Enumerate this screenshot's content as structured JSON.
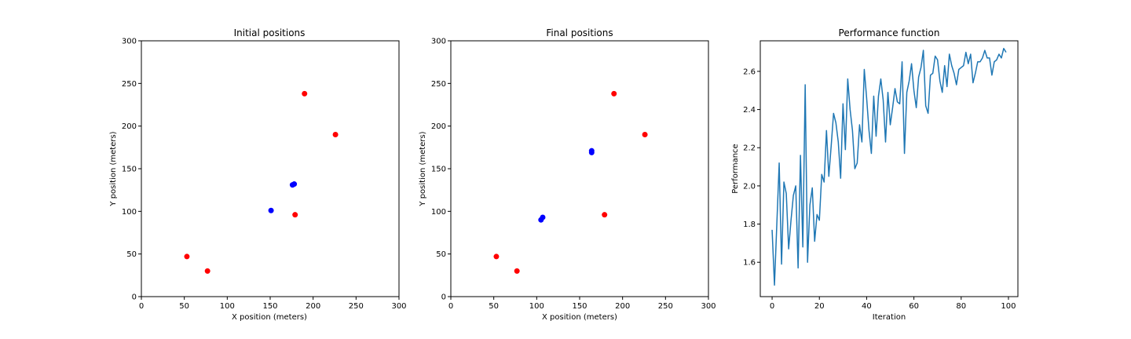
{
  "chart_data": [
    {
      "type": "scatter",
      "title": "Initial positions",
      "xlabel": "X position (meters)",
      "ylabel": "Y position (meters)",
      "xlim": [
        0,
        300
      ],
      "ylim": [
        0,
        300
      ],
      "xticks": [
        0,
        50,
        100,
        150,
        200,
        250,
        300
      ],
      "yticks": [
        0,
        50,
        100,
        150,
        200,
        250,
        300
      ],
      "grid": false,
      "series": [
        {
          "color": "#ff0000",
          "points": [
            [
              53,
              47
            ],
            [
              77,
              30
            ],
            [
              179,
              96
            ],
            [
              190,
              238
            ],
            [
              226,
              190
            ]
          ]
        },
        {
          "color": "#0000ff",
          "points": [
            [
              151,
              101
            ],
            [
              176,
              131
            ],
            [
              178,
              132
            ]
          ]
        }
      ]
    },
    {
      "type": "scatter",
      "title": "Final positions",
      "xlabel": "X position (meters)",
      "ylabel": "Y position (meters)",
      "xlim": [
        0,
        300
      ],
      "ylim": [
        0,
        300
      ],
      "xticks": [
        0,
        50,
        100,
        150,
        200,
        250,
        300
      ],
      "yticks": [
        0,
        50,
        100,
        150,
        200,
        250,
        300
      ],
      "grid": false,
      "series": [
        {
          "color": "#ff0000",
          "points": [
            [
              53,
              47
            ],
            [
              77,
              30
            ],
            [
              179,
              96
            ],
            [
              190,
              238
            ],
            [
              226,
              190
            ]
          ]
        },
        {
          "color": "#0000ff",
          "points": [
            [
              105,
              90
            ],
            [
              107,
              93
            ],
            [
              164,
              169
            ],
            [
              164,
              171
            ]
          ]
        }
      ]
    },
    {
      "type": "line",
      "title": "Performance function",
      "xlabel": "Iteration",
      "ylabel": "Performance",
      "xlim": [
        -5,
        104
      ],
      "ylim": [
        1.42,
        2.76
      ],
      "xticks": [
        0,
        20,
        40,
        60,
        80,
        100
      ],
      "yticks": [
        1.6,
        1.8,
        2.0,
        2.2,
        2.4,
        2.6
      ],
      "ytick_labels": [
        "1.6",
        "1.8",
        "2.0",
        "2.2",
        "2.4",
        "2.6"
      ],
      "grid": false,
      "series": [
        {
          "color": "#1f77b4",
          "x": [
            0,
            1,
            2,
            3,
            4,
            5,
            6,
            7,
            8,
            9,
            10,
            11,
            12,
            13,
            14,
            15,
            16,
            17,
            18,
            19,
            20,
            21,
            22,
            23,
            24,
            25,
            26,
            27,
            28,
            29,
            30,
            31,
            32,
            33,
            34,
            35,
            36,
            37,
            38,
            39,
            40,
            41,
            42,
            43,
            44,
            45,
            46,
            47,
            48,
            49,
            50,
            51,
            52,
            53,
            54,
            55,
            56,
            57,
            58,
            59,
            60,
            61,
            62,
            63,
            64,
            65,
            66,
            67,
            68,
            69,
            70,
            71,
            72,
            73,
            74,
            75,
            76,
            77,
            78,
            79,
            80,
            81,
            82,
            83,
            84,
            85,
            86,
            87,
            88,
            89,
            90,
            91,
            92,
            93,
            94,
            95,
            96,
            97,
            98,
            99
          ],
          "y": [
            1.77,
            1.48,
            1.8,
            2.12,
            1.59,
            2.02,
            1.96,
            1.67,
            1.82,
            1.95,
            2.0,
            1.57,
            2.16,
            1.68,
            2.53,
            1.6,
            1.9,
            1.99,
            1.71,
            1.85,
            1.82,
            2.06,
            2.02,
            2.29,
            2.05,
            2.21,
            2.38,
            2.33,
            2.23,
            2.04,
            2.43,
            2.19,
            2.56,
            2.4,
            2.29,
            2.09,
            2.12,
            2.32,
            2.23,
            2.61,
            2.46,
            2.29,
            2.17,
            2.47,
            2.26,
            2.47,
            2.56,
            2.45,
            2.23,
            2.49,
            2.32,
            2.41,
            2.51,
            2.44,
            2.43,
            2.65,
            2.17,
            2.49,
            2.55,
            2.64,
            2.5,
            2.41,
            2.57,
            2.62,
            2.71,
            2.42,
            2.38,
            2.58,
            2.59,
            2.68,
            2.66,
            2.55,
            2.49,
            2.63,
            2.52,
            2.69,
            2.63,
            2.59,
            2.53,
            2.61,
            2.62,
            2.63,
            2.7,
            2.64,
            2.69,
            2.54,
            2.59,
            2.65,
            2.65,
            2.67,
            2.71,
            2.67,
            2.67,
            2.58,
            2.65,
            2.66,
            2.69,
            2.67,
            2.72,
            2.7
          ]
        }
      ]
    }
  ]
}
